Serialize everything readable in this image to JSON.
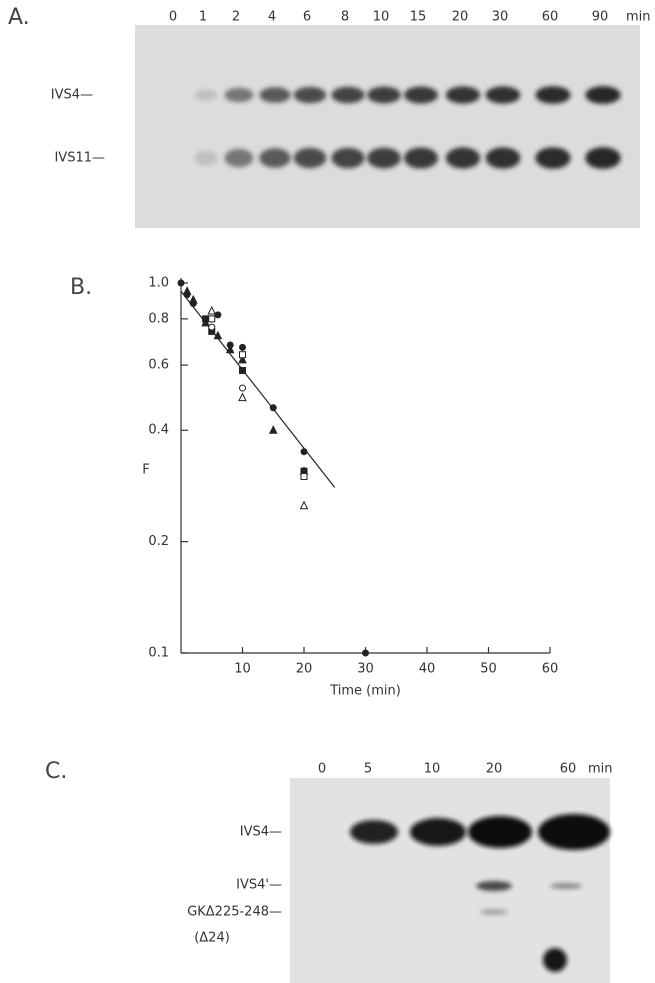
{
  "panel_a": {
    "label": "A.",
    "lanes": [
      "0",
      "1",
      "2",
      "4",
      "6",
      "8",
      "10",
      "15",
      "20",
      "30",
      "60",
      "90"
    ],
    "unit": "min",
    "bands": [
      "IVS4—",
      "IVS11—"
    ]
  },
  "chart_data": {
    "type": "scatter",
    "panel_label": "B.",
    "xlabel": "Time (min)",
    "ylabel": "F",
    "log_y": true,
    "color": "#222",
    "xlim": [
      0,
      60
    ],
    "xticks": [
      10,
      20,
      30,
      40,
      50,
      60
    ],
    "ylim": [
      0.1,
      1.0
    ],
    "yticks": [
      {
        "value": 0.1,
        "label": "0.1"
      },
      {
        "value": 0.2,
        "label": "0.2"
      },
      {
        "value": 0.4,
        "label": "0.4"
      },
      {
        "value": 0.6,
        "label": "0.6"
      },
      {
        "value": 0.8,
        "label": "0.8"
      },
      {
        "value": 1.0,
        "label": "1.0"
      }
    ],
    "series": [
      {
        "marker": "circle",
        "filled": true,
        "x": [
          0,
          1,
          2,
          5,
          6,
          8,
          10,
          15,
          20,
          20,
          30
        ],
        "values": [
          1.0,
          0.93,
          0.88,
          0.8,
          0.82,
          0.68,
          0.67,
          0.46,
          0.35,
          0.31,
          0.1
        ]
      },
      {
        "marker": "triangle",
        "filled": true,
        "x": [
          1,
          2,
          4,
          6,
          8,
          10,
          15,
          20
        ],
        "values": [
          0.95,
          0.9,
          0.78,
          0.72,
          0.66,
          0.62,
          0.4,
          0.31
        ]
      },
      {
        "marker": "square",
        "filled": true,
        "x": [
          4,
          5,
          10,
          20
        ],
        "values": [
          0.8,
          0.74,
          0.58,
          0.31
        ]
      },
      {
        "marker": "circle",
        "filled": false,
        "x": [
          5,
          10
        ],
        "values": [
          0.76,
          0.52
        ]
      },
      {
        "marker": "triangle",
        "filled": false,
        "x": [
          5,
          10,
          20
        ],
        "values": [
          0.84,
          0.49,
          0.25
        ]
      },
      {
        "marker": "square",
        "filled": false,
        "x": [
          5,
          10,
          20
        ],
        "values": [
          0.8,
          0.64,
          0.3
        ]
      }
    ],
    "fit": {
      "x": [
        0,
        25
      ],
      "values": [
        0.95,
        0.28
      ]
    }
  },
  "panel_c": {
    "label": "C.",
    "lanes": [
      "0",
      "5",
      "10",
      "20",
      "60"
    ],
    "unit": "min",
    "bands": [
      "IVS4—",
      "IVS4'—",
      "GKΔ225-248—",
      "(Δ24)"
    ]
  }
}
